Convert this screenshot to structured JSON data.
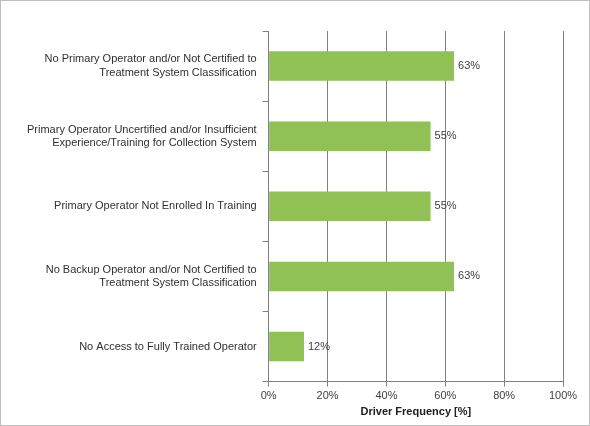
{
  "chart_data": {
    "type": "bar",
    "orientation": "horizontal",
    "categories": [
      "No Primary Operator and/or Not Certified to Treatment System Classification",
      "Primary Operator Uncertified and/or Insufficient Experience/Training for Collection System",
      "Primary Operator Not Enrolled In Training",
      "No Backup Operator and/or Not Certified to Treatment System Classification",
      "No Access to Fully Trained Operator"
    ],
    "values": [
      63,
      55,
      55,
      63,
      12
    ],
    "value_labels": [
      "63%",
      "55%",
      "55%",
      "63%",
      "12%"
    ],
    "data_labels": true,
    "color": "#8fc155",
    "x_label": "Driver Frequency [%]",
    "xlim": [
      0,
      100
    ],
    "xticks": [
      {
        "value": 0,
        "label": "0%"
      },
      {
        "value": 20,
        "label": "20%"
      },
      {
        "value": 40,
        "label": "40%"
      },
      {
        "value": 60,
        "label": "60%"
      },
      {
        "value": 80,
        "label": "80%"
      },
      {
        "value": 100,
        "label": "100%"
      }
    ],
    "grid": true
  }
}
